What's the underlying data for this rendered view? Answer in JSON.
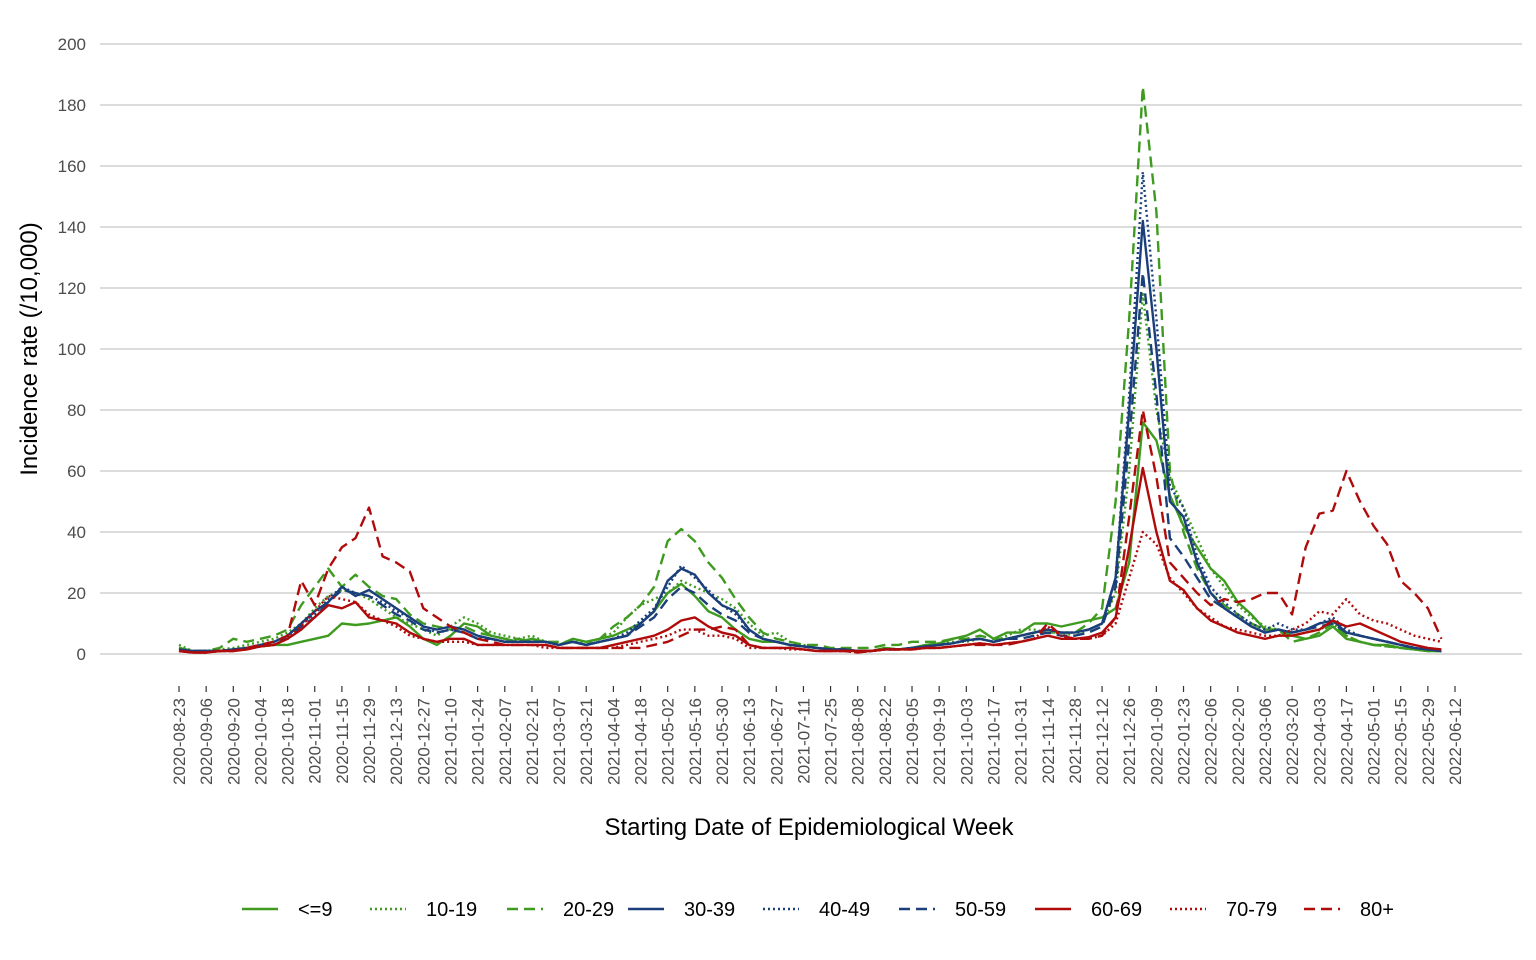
{
  "chart_data": {
    "type": "line",
    "xlabel": "Starting Date of Epidemiological Week",
    "ylabel": "Incidence rate (/10,000)",
    "ylim": [
      0,
      200
    ],
    "yticks": [
      0,
      20,
      40,
      60,
      80,
      100,
      120,
      140,
      160,
      180,
      200
    ],
    "grid": "horizontal",
    "legend_position": "bottom",
    "xtick_labels": [
      "2020-08-23",
      "2020-09-06",
      "2020-09-20",
      "2020-10-04",
      "2020-10-18",
      "2020-11-01",
      "2020-11-15",
      "2020-11-29",
      "2020-12-13",
      "2020-12-27",
      "2021-01-10",
      "2021-01-24",
      "2021-02-07",
      "2021-02-21",
      "2021-03-07",
      "2021-03-21",
      "2021-04-04",
      "2021-04-18",
      "2021-05-02",
      "2021-05-16",
      "2021-05-30",
      "2021-06-13",
      "2021-06-27",
      "2021-07-11",
      "2021-07-25",
      "2021-08-08",
      "2021-08-22",
      "2021-09-05",
      "2021-09-19",
      "2021-10-03",
      "2021-10-17",
      "2021-10-31",
      "2021-11-14",
      "2021-11-28",
      "2021-12-12",
      "2021-12-26",
      "2022-01-09",
      "2022-01-23",
      "2022-02-06",
      "2022-02-20",
      "2022-03-06",
      "2022-03-20",
      "2022-04-03",
      "2022-04-17",
      "2022-05-01",
      "2022-05-15",
      "2022-05-29",
      "2022-06-12"
    ],
    "x": [
      "2020-08-23",
      "2020-08-30",
      "2020-09-06",
      "2020-09-13",
      "2020-09-20",
      "2020-09-27",
      "2020-10-04",
      "2020-10-11",
      "2020-10-18",
      "2020-10-25",
      "2020-11-01",
      "2020-11-08",
      "2020-11-15",
      "2020-11-22",
      "2020-11-29",
      "2020-12-06",
      "2020-12-13",
      "2020-12-20",
      "2020-12-27",
      "2021-01-03",
      "2021-01-10",
      "2021-01-17",
      "2021-01-24",
      "2021-01-31",
      "2021-02-07",
      "2021-02-14",
      "2021-02-21",
      "2021-02-28",
      "2021-03-07",
      "2021-03-14",
      "2021-03-21",
      "2021-03-28",
      "2021-04-04",
      "2021-04-11",
      "2021-04-18",
      "2021-04-25",
      "2021-05-02",
      "2021-05-09",
      "2021-05-16",
      "2021-05-23",
      "2021-05-30",
      "2021-06-06",
      "2021-06-13",
      "2021-06-20",
      "2021-06-27",
      "2021-07-04",
      "2021-07-11",
      "2021-07-18",
      "2021-07-25",
      "2021-08-01",
      "2021-08-08",
      "2021-08-15",
      "2021-08-22",
      "2021-08-29",
      "2021-09-05",
      "2021-09-12",
      "2021-09-19",
      "2021-09-26",
      "2021-10-03",
      "2021-10-10",
      "2021-10-17",
      "2021-10-24",
      "2021-10-31",
      "2021-11-07",
      "2021-11-14",
      "2021-11-21",
      "2021-11-28",
      "2021-12-05",
      "2021-12-12",
      "2021-12-19",
      "2021-12-26",
      "2022-01-02",
      "2022-01-09",
      "2022-01-16",
      "2022-01-23",
      "2022-01-30",
      "2022-02-06",
      "2022-02-13",
      "2022-02-20",
      "2022-02-27",
      "2022-03-06",
      "2022-03-13",
      "2022-03-20",
      "2022-03-27",
      "2022-04-03",
      "2022-04-10",
      "2022-04-17",
      "2022-04-24",
      "2022-05-01",
      "2022-05-08",
      "2022-05-15",
      "2022-05-22",
      "2022-05-29",
      "2022-06-05"
    ],
    "series": [
      {
        "name": "<=9",
        "color": "#3e9b1f",
        "dash": "solid",
        "values": [
          2,
          1,
          1,
          1,
          1.5,
          2,
          2.5,
          3,
          3,
          4,
          5,
          6,
          10,
          9.5,
          10,
          11,
          12,
          9,
          5,
          3,
          6,
          10,
          9,
          6,
          5,
          4,
          5,
          4,
          3,
          5,
          4,
          5,
          6,
          8,
          10,
          14,
          20,
          23,
          19,
          14,
          12,
          8,
          5,
          4,
          4,
          3,
          2.5,
          2,
          1.5,
          1.5,
          1,
          1,
          2,
          1.5,
          2,
          3,
          3.5,
          5,
          6,
          8,
          5,
          7,
          7,
          10,
          10,
          9,
          10,
          11,
          12,
          15,
          30,
          76,
          70,
          52,
          42,
          35,
          28,
          24,
          17,
          13,
          8,
          8,
          6,
          5,
          6,
          9,
          5,
          4,
          3,
          3,
          2,
          1.5,
          1,
          1
        ]
      },
      {
        "name": "10-19",
        "color": "#3e9b1f",
        "dash": "dot",
        "values": [
          3,
          1,
          1,
          1.5,
          2,
          3,
          4,
          5,
          7,
          10,
          15,
          19,
          21,
          20,
          18,
          15,
          12,
          10,
          8,
          6,
          9,
          12,
          10,
          7,
          6,
          5,
          6,
          4,
          3,
          4,
          4,
          5,
          7,
          12,
          16,
          18,
          20,
          24,
          22,
          20,
          18,
          15,
          10,
          6,
          7,
          4,
          3,
          2,
          1.5,
          1.5,
          1,
          1,
          2,
          1.5,
          2,
          2.5,
          3,
          4,
          4,
          5,
          4,
          6,
          8,
          8,
          7,
          7,
          6,
          8,
          10,
          20,
          60,
          118,
          80,
          58,
          48,
          38,
          28,
          22,
          16,
          12,
          9,
          8,
          6,
          7,
          8,
          10,
          6,
          4,
          3,
          2.5,
          2,
          1.5,
          1,
          1
        ]
      },
      {
        "name": "20-29",
        "color": "#3e9b1f",
        "dash": "dash",
        "values": [
          2,
          1,
          1,
          2,
          5,
          4,
          5,
          6,
          8,
          16,
          22,
          28,
          22,
          26,
          22,
          19,
          18,
          13,
          10,
          9,
          8,
          9,
          7,
          6,
          5,
          5,
          4,
          4,
          4,
          4,
          3,
          5,
          9,
          12,
          16,
          22,
          37,
          41,
          37,
          30,
          25,
          18,
          12,
          7,
          5,
          4,
          3,
          3,
          2,
          2,
          2,
          2,
          3,
          3,
          4,
          4,
          4,
          5,
          5,
          6,
          5,
          5,
          6,
          7,
          7,
          7,
          7,
          10,
          15,
          50,
          110,
          186,
          145,
          60,
          40,
          28,
          20,
          16,
          13,
          10,
          8,
          8,
          4,
          5,
          7,
          10,
          6,
          4,
          3,
          2.5,
          2,
          1.5,
          1,
          1
        ]
      },
      {
        "name": "30-39",
        "color": "#1a3f7a",
        "dash": "solid",
        "values": [
          1.5,
          1,
          1,
          1,
          1.5,
          2,
          3,
          4,
          6,
          10,
          14,
          17,
          22,
          19,
          21,
          18,
          15,
          12,
          9,
          8,
          9,
          8,
          6,
          5,
          4,
          4,
          4,
          4,
          3,
          4,
          3,
          4,
          5,
          6,
          10,
          14,
          24,
          28,
          26,
          20,
          16,
          14,
          8,
          5,
          4,
          3,
          2.5,
          2,
          1.5,
          1.5,
          1,
          1,
          1.5,
          1.5,
          2,
          2.5,
          3,
          3.5,
          4.5,
          5,
          4,
          5,
          6,
          7,
          8,
          7,
          7,
          8,
          10,
          25,
          80,
          142,
          100,
          50,
          45,
          30,
          20,
          15,
          12,
          9,
          7,
          8,
          7,
          8,
          10,
          11,
          7,
          6,
          5,
          4,
          3,
          2,
          1.5,
          1
        ]
      },
      {
        "name": "40-49",
        "color": "#1a3f7a",
        "dash": "dot",
        "values": [
          1,
          1,
          1,
          1,
          1.5,
          2,
          3,
          4,
          6,
          10,
          13,
          18,
          22,
          20,
          19,
          17,
          14,
          12,
          9,
          7,
          8,
          7,
          5,
          5,
          4,
          4,
          4,
          4,
          3,
          4,
          3,
          4,
          5,
          7,
          11,
          15,
          22,
          29,
          25,
          21,
          16,
          13,
          8,
          5,
          4,
          3,
          2.5,
          2,
          1.5,
          1.5,
          1,
          1,
          1.5,
          1.5,
          2,
          2.5,
          3,
          3.5,
          4.5,
          5,
          4,
          5,
          6,
          7,
          8,
          7,
          7,
          8,
          10,
          25,
          85,
          158,
          110,
          55,
          48,
          32,
          22,
          17,
          13,
          10,
          8,
          10,
          8,
          8,
          10,
          12,
          8,
          6,
          5,
          4,
          3,
          2,
          1.5,
          1
        ]
      },
      {
        "name": "50-59",
        "color": "#1a3f7a",
        "dash": "dash",
        "values": [
          1,
          1,
          1,
          1,
          1.5,
          2,
          3,
          4,
          5,
          9,
          12,
          17,
          21,
          20,
          19,
          16,
          13,
          11,
          8,
          7,
          8,
          7,
          5,
          5,
          4,
          4,
          4,
          4,
          3,
          4,
          3,
          4,
          5,
          6,
          9,
          12,
          18,
          22,
          20,
          16,
          13,
          11,
          7,
          5,
          4,
          3,
          2.5,
          2,
          1.5,
          1.5,
          1,
          1,
          1.5,
          1.5,
          2,
          2.5,
          3,
          3.5,
          4.5,
          5,
          4,
          5,
          5,
          6,
          7,
          6,
          6,
          7,
          9,
          22,
          70,
          125,
          85,
          38,
          32,
          25,
          18,
          15,
          12,
          9,
          7,
          8,
          7,
          8,
          9,
          10,
          7,
          6,
          5,
          4,
          3,
          2,
          1.5,
          1
        ]
      },
      {
        "name": "60-69",
        "color": "#b00b0b",
        "dash": "solid",
        "values": [
          1,
          0.5,
          0.5,
          1,
          1,
          1.5,
          2.5,
          3,
          5,
          8,
          12,
          16,
          15,
          17,
          12,
          11,
          10,
          7,
          5,
          4,
          5,
          5,
          3,
          3,
          3,
          3,
          3,
          3,
          2,
          2,
          2,
          2,
          3,
          4,
          5,
          6,
          8,
          11,
          12,
          9,
          7,
          6,
          3,
          2,
          2,
          2,
          1.5,
          1,
          1,
          1,
          1,
          1,
          1.5,
          1.5,
          1.5,
          2,
          2,
          2.5,
          3,
          3.5,
          3,
          3.5,
          4,
          5,
          6,
          5,
          5,
          5.5,
          7,
          12,
          35,
          61,
          40,
          24,
          21,
          15,
          11,
          9,
          7,
          6,
          5,
          6,
          6,
          7,
          8,
          11,
          9,
          10,
          8,
          6,
          4,
          3,
          2,
          1.5
        ]
      },
      {
        "name": "70-79",
        "color": "#b00b0b",
        "dash": "dot",
        "values": [
          1,
          0.5,
          0.5,
          1,
          1,
          1.5,
          2.5,
          3,
          5,
          9,
          14,
          19,
          18,
          17,
          13,
          11,
          9,
          6,
          5,
          4,
          4,
          4,
          3,
          3,
          3,
          3,
          3,
          2,
          2,
          2,
          2,
          2,
          2,
          3,
          4,
          5,
          6,
          8,
          8,
          6,
          6,
          5,
          2,
          2,
          2,
          1.5,
          1.5,
          1,
          1,
          1,
          0.5,
          1,
          1.5,
          1.5,
          1.5,
          2,
          2,
          2.5,
          3,
          3.5,
          3,
          3.5,
          4,
          5,
          9,
          6,
          5,
          5,
          6,
          10,
          25,
          40,
          36,
          25,
          20,
          15,
          12,
          9,
          8,
          7,
          6,
          6,
          8,
          10,
          14,
          13,
          18,
          13,
          11,
          10,
          8,
          6,
          5,
          4
        ]
      },
      {
        "name": "80+",
        "color": "#b00b0b",
        "dash": "dash",
        "values": [
          1,
          0.5,
          0.5,
          1,
          1,
          2,
          3,
          4,
          6,
          24,
          16,
          28,
          35,
          38,
          48,
          32,
          30,
          27,
          15,
          12,
          9,
          7,
          5,
          4,
          3,
          3,
          3,
          3,
          2,
          2,
          2,
          2,
          2,
          2,
          2,
          3,
          4,
          6,
          8,
          8,
          9,
          8,
          3,
          2,
          2,
          2,
          1.5,
          1,
          1,
          1,
          0.5,
          1,
          1.5,
          1.5,
          1.5,
          2,
          2,
          2.5,
          3,
          3,
          3,
          3,
          4,
          5,
          10,
          6,
          5,
          5,
          6,
          12,
          45,
          80,
          58,
          30,
          25,
          20,
          16,
          18,
          17,
          18,
          20,
          20,
          13,
          35,
          46,
          47,
          60,
          50,
          42,
          36,
          24,
          20,
          15,
          5
        ]
      }
    ]
  }
}
